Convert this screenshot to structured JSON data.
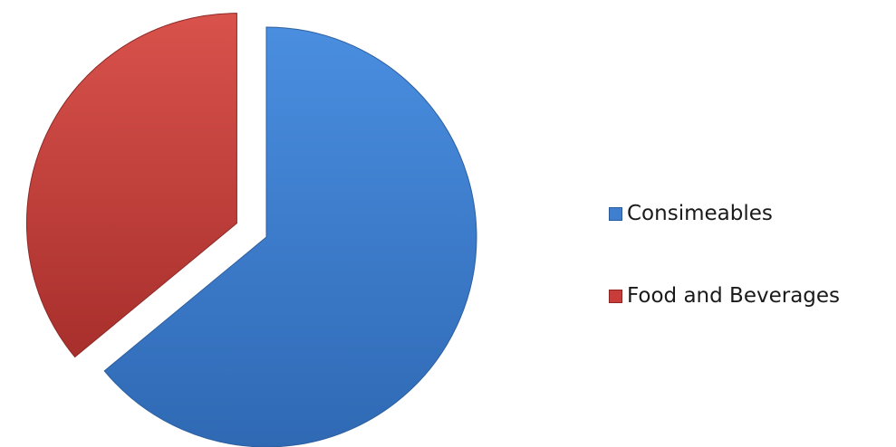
{
  "chart_data": {
    "type": "pie",
    "title": "",
    "slices": [
      {
        "name": "Consimeables",
        "value": 64,
        "color": "#3f7fd0"
      },
      {
        "name": "Food and Beverages",
        "value": 36,
        "color": "#c83d3a"
      }
    ],
    "exploded": true,
    "legend_position": "right"
  },
  "legend": {
    "items": [
      {
        "label": "Consimeables",
        "color": "#3f7fd0"
      },
      {
        "label": "Food and Beverages",
        "color": "#c83d3a"
      }
    ]
  }
}
